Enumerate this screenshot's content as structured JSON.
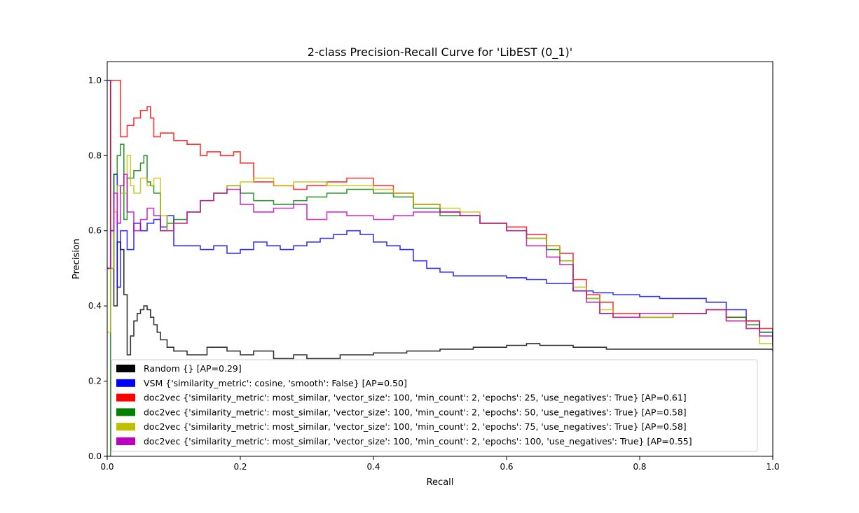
{
  "chart_data": {
    "type": "line",
    "title": "2-class Precision-Recall Curve for 'LibEST (0_1)'",
    "xlabel": "Recall",
    "ylabel": "Precision",
    "xlim": [
      0.0,
      1.0
    ],
    "ylim": [
      0.0,
      1.05
    ],
    "x_ticks": [
      "0.0",
      "0.2",
      "0.4",
      "0.6",
      "0.8",
      "1.0"
    ],
    "y_ticks": [
      "0.0",
      "0.2",
      "0.4",
      "0.6",
      "0.8",
      "1.0"
    ],
    "grid": false,
    "legend_position": "lower-left",
    "series": [
      {
        "name": "Random {} [AP=0.29]",
        "color": "#000000",
        "x": [
          0.0,
          0.005,
          0.01,
          0.015,
          0.02,
          0.025,
          0.03,
          0.035,
          0.04,
          0.045,
          0.05,
          0.055,
          0.06,
          0.065,
          0.07,
          0.075,
          0.08,
          0.09,
          0.1,
          0.12,
          0.15,
          0.18,
          0.2,
          0.22,
          0.25,
          0.28,
          0.3,
          0.35,
          0.4,
          0.45,
          0.5,
          0.55,
          0.6,
          0.63,
          0.65,
          0.7,
          0.75,
          0.8,
          0.85,
          0.9,
          0.95,
          1.0
        ],
        "y": [
          0.5,
          0.6,
          0.4,
          0.57,
          0.55,
          0.43,
          0.27,
          0.32,
          0.36,
          0.38,
          0.39,
          0.4,
          0.39,
          0.37,
          0.35,
          0.33,
          0.31,
          0.29,
          0.28,
          0.27,
          0.29,
          0.28,
          0.27,
          0.28,
          0.26,
          0.27,
          0.26,
          0.27,
          0.275,
          0.28,
          0.285,
          0.29,
          0.295,
          0.3,
          0.295,
          0.29,
          0.285,
          0.285,
          0.285,
          0.285,
          0.285,
          0.28
        ]
      },
      {
        "name": "VSM {'similarity_metric': cosine, 'smooth': False} [AP=0.50]",
        "color": "#0000ff",
        "x": [
          0.0,
          0.005,
          0.01,
          0.015,
          0.02,
          0.03,
          0.04,
          0.05,
          0.06,
          0.07,
          0.08,
          0.09,
          0.1,
          0.12,
          0.14,
          0.16,
          0.18,
          0.2,
          0.22,
          0.24,
          0.26,
          0.28,
          0.3,
          0.32,
          0.34,
          0.36,
          0.38,
          0.4,
          0.42,
          0.44,
          0.46,
          0.48,
          0.5,
          0.52,
          0.55,
          0.58,
          0.6,
          0.63,
          0.66,
          0.7,
          0.73,
          0.76,
          0.8,
          0.83,
          0.86,
          0.9,
          0.93,
          0.96,
          0.98,
          1.0
        ],
        "y": [
          1.0,
          0.6,
          0.75,
          0.45,
          0.6,
          0.55,
          0.62,
          0.6,
          0.62,
          0.63,
          0.61,
          0.64,
          0.56,
          0.56,
          0.55,
          0.56,
          0.54,
          0.55,
          0.57,
          0.56,
          0.55,
          0.56,
          0.57,
          0.58,
          0.59,
          0.6,
          0.59,
          0.57,
          0.56,
          0.55,
          0.52,
          0.5,
          0.49,
          0.48,
          0.48,
          0.48,
          0.475,
          0.47,
          0.46,
          0.44,
          0.435,
          0.43,
          0.425,
          0.42,
          0.42,
          0.41,
          0.39,
          0.36,
          0.33,
          0.31
        ]
      },
      {
        "name": "doc2vec {'similarity_metric': most_similar, 'vector_size': 100, 'min_count': 2, 'epochs': 25, 'use_negatives': True} [AP=0.61]",
        "color": "#ff0000",
        "x": [
          0.0,
          0.005,
          0.01,
          0.015,
          0.02,
          0.03,
          0.04,
          0.05,
          0.06,
          0.065,
          0.07,
          0.08,
          0.1,
          0.12,
          0.14,
          0.15,
          0.17,
          0.19,
          0.2,
          0.22,
          0.25,
          0.28,
          0.3,
          0.33,
          0.36,
          0.4,
          0.43,
          0.46,
          0.5,
          0.53,
          0.56,
          0.6,
          0.63,
          0.66,
          0.68,
          0.7,
          0.72,
          0.74,
          0.76,
          0.8,
          0.85,
          0.9,
          0.93,
          0.96,
          0.98,
          1.0
        ],
        "y": [
          0.5,
          1.0,
          1.0,
          1.0,
          0.85,
          0.88,
          0.9,
          0.92,
          0.93,
          0.9,
          0.85,
          0.86,
          0.84,
          0.83,
          0.8,
          0.81,
          0.8,
          0.81,
          0.78,
          0.73,
          0.72,
          0.71,
          0.72,
          0.73,
          0.74,
          0.72,
          0.7,
          0.67,
          0.65,
          0.64,
          0.62,
          0.61,
          0.59,
          0.56,
          0.54,
          0.47,
          0.43,
          0.41,
          0.38,
          0.37,
          0.38,
          0.39,
          0.37,
          0.36,
          0.34,
          0.3
        ]
      },
      {
        "name": "doc2vec {'similarity_metric': most_similar, 'vector_size': 100, 'min_count': 2, 'epochs': 50, 'use_negatives': True} [AP=0.58]",
        "color": "#008000",
        "x": [
          0.0,
          0.005,
          0.01,
          0.015,
          0.02,
          0.025,
          0.03,
          0.04,
          0.05,
          0.055,
          0.06,
          0.065,
          0.07,
          0.08,
          0.09,
          0.1,
          0.12,
          0.14,
          0.16,
          0.18,
          0.2,
          0.22,
          0.25,
          0.28,
          0.3,
          0.33,
          0.36,
          0.4,
          0.43,
          0.46,
          0.5,
          0.53,
          0.56,
          0.6,
          0.63,
          0.66,
          0.68,
          0.7,
          0.72,
          0.74,
          0.76,
          0.8,
          0.85,
          0.9,
          0.93,
          0.96,
          0.98,
          1.0
        ],
        "y": [
          0.0,
          0.5,
          0.75,
          0.8,
          0.83,
          0.63,
          0.74,
          0.76,
          0.78,
          0.8,
          0.73,
          0.72,
          0.7,
          0.6,
          0.62,
          0.63,
          0.65,
          0.68,
          0.7,
          0.72,
          0.7,
          0.68,
          0.67,
          0.68,
          0.69,
          0.7,
          0.71,
          0.7,
          0.69,
          0.66,
          0.64,
          0.64,
          0.62,
          0.6,
          0.58,
          0.55,
          0.52,
          0.44,
          0.42,
          0.38,
          0.37,
          0.37,
          0.38,
          0.39,
          0.37,
          0.35,
          0.33,
          0.31
        ]
      },
      {
        "name": "doc2vec {'similarity_metric': most_similar, 'vector_size': 100, 'min_count': 2, 'epochs': 75, 'use_negatives': True} [AP=0.58]",
        "color": "#bfbf00",
        "x": [
          0.0,
          0.005,
          0.01,
          0.015,
          0.02,
          0.03,
          0.035,
          0.04,
          0.05,
          0.06,
          0.07,
          0.08,
          0.09,
          0.1,
          0.12,
          0.14,
          0.16,
          0.18,
          0.2,
          0.22,
          0.25,
          0.28,
          0.3,
          0.33,
          0.36,
          0.4,
          0.43,
          0.46,
          0.5,
          0.53,
          0.56,
          0.6,
          0.63,
          0.66,
          0.68,
          0.7,
          0.72,
          0.74,
          0.76,
          0.8,
          0.85,
          0.9,
          0.93,
          0.96,
          0.98,
          1.0
        ],
        "y": [
          0.33,
          0.5,
          0.65,
          0.72,
          0.7,
          0.8,
          0.72,
          0.7,
          0.74,
          0.72,
          0.74,
          0.64,
          0.6,
          0.62,
          0.65,
          0.68,
          0.7,
          0.72,
          0.73,
          0.74,
          0.72,
          0.73,
          0.73,
          0.72,
          0.72,
          0.71,
          0.7,
          0.67,
          0.66,
          0.65,
          0.62,
          0.6,
          0.58,
          0.56,
          0.52,
          0.45,
          0.42,
          0.39,
          0.37,
          0.37,
          0.38,
          0.39,
          0.36,
          0.34,
          0.3,
          0.29
        ]
      },
      {
        "name": "doc2vec {'similarity_metric': most_similar, 'vector_size': 100, 'min_count': 2, 'epochs': 100, 'use_negatives': True} [AP=0.55]",
        "color": "#bf00bf",
        "x": [
          0.0,
          0.005,
          0.01,
          0.015,
          0.02,
          0.025,
          0.03,
          0.04,
          0.05,
          0.06,
          0.07,
          0.08,
          0.1,
          0.12,
          0.14,
          0.16,
          0.18,
          0.2,
          0.22,
          0.25,
          0.28,
          0.3,
          0.33,
          0.36,
          0.4,
          0.43,
          0.46,
          0.5,
          0.53,
          0.56,
          0.6,
          0.63,
          0.66,
          0.68,
          0.7,
          0.72,
          0.74,
          0.76,
          0.8,
          0.85,
          0.9,
          0.93,
          0.96,
          0.98,
          1.0
        ],
        "y": [
          0.5,
          0.6,
          0.7,
          0.62,
          0.72,
          0.75,
          0.65,
          0.6,
          0.63,
          0.66,
          0.64,
          0.6,
          0.62,
          0.65,
          0.68,
          0.7,
          0.71,
          0.67,
          0.65,
          0.66,
          0.67,
          0.63,
          0.65,
          0.64,
          0.63,
          0.64,
          0.65,
          0.65,
          0.64,
          0.62,
          0.6,
          0.56,
          0.53,
          0.51,
          0.44,
          0.41,
          0.38,
          0.37,
          0.38,
          0.38,
          0.39,
          0.36,
          0.34,
          0.32,
          0.29
        ]
      }
    ]
  }
}
